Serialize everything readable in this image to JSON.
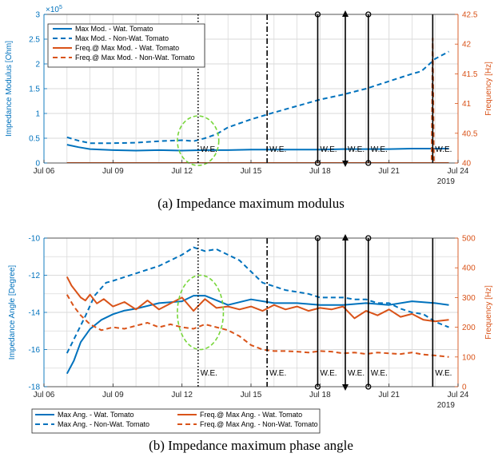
{
  "colors": {
    "blue": "#0072BD",
    "orange": "#D95319",
    "green": "#77D63A",
    "grid": "#DADADA",
    "event": "#000000"
  },
  "chart_data": [
    {
      "type": "line",
      "caption": "(a) Impedance maximum modulus",
      "ylabel_left": "Impedance Modulus [Ohm]",
      "ylabel_right": "Frequency [Hz]",
      "y_exponent_label": "×10^5",
      "x_ticks": [
        "Jul 06",
        "Jul 09",
        "Jul 12",
        "Jul 15",
        "Jul 18",
        "Jul 21",
        "Jul 24"
      ],
      "x_tick_values": [
        6,
        9,
        12,
        15,
        18,
        21,
        24
      ],
      "x_year_label": "2019",
      "xlim": [
        6,
        24
      ],
      "ylim_left": [
        0,
        3
      ],
      "ylim_right": [
        40,
        42.5
      ],
      "y_ticks_left": [
        "0",
        "0.5",
        "1",
        "1.5",
        "2",
        "2.5",
        "3"
      ],
      "y_tick_values_left": [
        0,
        0.5,
        1,
        1.5,
        2,
        2.5,
        3
      ],
      "y_ticks_right": [
        "40",
        "40.5",
        "41",
        "41.5",
        "42",
        "42.5"
      ],
      "y_tick_values_right": [
        40,
        40.5,
        41,
        41.5,
        42,
        42.5
      ],
      "grid": true,
      "legend_position": "top-left",
      "series": [
        {
          "name": "Max Mod. - Wat. Tomato",
          "axis": "left",
          "style": "solid",
          "color": "blue",
          "x": [
            7,
            7.5,
            8,
            8.5,
            9,
            10,
            11,
            12,
            13,
            14,
            15,
            16,
            17,
            18,
            19,
            20,
            21,
            22,
            23,
            23.6
          ],
          "y": [
            0.37,
            0.32,
            0.28,
            0.27,
            0.26,
            0.25,
            0.26,
            0.25,
            0.26,
            0.26,
            0.27,
            0.27,
            0.27,
            0.27,
            0.28,
            0.28,
            0.28,
            0.29,
            0.29,
            0.29
          ]
        },
        {
          "name": "Max Mod. - Non-Wat. Tomato",
          "axis": "left",
          "style": "dashed",
          "color": "blue",
          "x": [
            7,
            7.5,
            8,
            8.5,
            9,
            10,
            11,
            12,
            12.5,
            13,
            13.5,
            14,
            15,
            16,
            17,
            18,
            19,
            20,
            21,
            22,
            22.4,
            23,
            23.6
          ],
          "y": [
            0.52,
            0.45,
            0.4,
            0.4,
            0.4,
            0.41,
            0.44,
            0.46,
            0.44,
            0.5,
            0.58,
            0.72,
            0.88,
            1.02,
            1.15,
            1.28,
            1.38,
            1.5,
            1.65,
            1.8,
            1.85,
            2.1,
            2.25
          ]
        },
        {
          "name": "Freq.@ Max Mod. - Wat. Tomato",
          "axis": "right",
          "style": "solid",
          "color": "orange",
          "x": [
            7,
            23.6
          ],
          "y": [
            40,
            40
          ]
        },
        {
          "name": "Freq.@ Max Mod. - Non-Wat. Tomato",
          "axis": "right",
          "style": "dashed",
          "color": "orange",
          "x": [
            7,
            22.85,
            22.9,
            22.95,
            23.6
          ],
          "y": [
            40,
            40,
            42.1,
            40,
            40
          ]
        }
      ],
      "event_lines": [
        {
          "x": 12.7,
          "style": "dotted",
          "marker": "none",
          "label": "W.E."
        },
        {
          "x": 15.7,
          "style": "dashdot",
          "marker": "none",
          "label": "W.E."
        },
        {
          "x": 17.9,
          "style": "solid",
          "marker": "circle",
          "label": "W.E."
        },
        {
          "x": 19.1,
          "style": "solid",
          "marker": "triangle",
          "label": "W.E."
        },
        {
          "x": 20.1,
          "style": "solid",
          "marker": "circle",
          "label": "W.E."
        },
        {
          "x": 22.9,
          "style": "solid",
          "marker": "none",
          "label": "W.E."
        }
      ],
      "highlight": {
        "x": 12.7,
        "y": 0.45,
        "rx": 0.9,
        "ry": 0.5
      }
    },
    {
      "type": "line",
      "caption": "(b) Impedance maximum phase angle",
      "ylabel_left": "Impedance Angle [Degree]",
      "ylabel_right": "Frequency [Hz]",
      "x_ticks": [
        "Jul 06",
        "Jul 09",
        "Jul 12",
        "Jul 15",
        "Jul 18",
        "Jul 21",
        "Jul 24"
      ],
      "x_tick_values": [
        6,
        9,
        12,
        15,
        18,
        21,
        24
      ],
      "x_year_label": "2019",
      "xlim": [
        6,
        24
      ],
      "ylim_left": [
        -18,
        -10
      ],
      "ylim_right": [
        0,
        500
      ],
      "y_ticks_left": [
        "-18",
        "-16",
        "-14",
        "-12",
        "-10"
      ],
      "y_tick_values_left": [
        -18,
        -16,
        -14,
        -12,
        -10
      ],
      "y_ticks_right": [
        "0",
        "100",
        "200",
        "300",
        "400",
        "500"
      ],
      "y_tick_values_right": [
        0,
        100,
        200,
        300,
        400,
        500
      ],
      "grid": true,
      "legend_position": "bottom-outside",
      "series": [
        {
          "name": "Max Ang. - Wat. Tomato",
          "axis": "left",
          "style": "solid",
          "color": "blue",
          "x": [
            7,
            7.3,
            7.6,
            8,
            8.5,
            9,
            9.5,
            10,
            11,
            12,
            12.5,
            13,
            14,
            15,
            16,
            17,
            18,
            19,
            20,
            21,
            22,
            23,
            23.6
          ],
          "y": [
            -17.3,
            -16.6,
            -15.6,
            -14.9,
            -14.4,
            -14.1,
            -13.9,
            -13.8,
            -13.5,
            -13.4,
            -13.1,
            -13.1,
            -13.6,
            -13.3,
            -13.5,
            -13.5,
            -13.6,
            -13.6,
            -13.5,
            -13.6,
            -13.4,
            -13.5,
            -13.6
          ]
        },
        {
          "name": "Max Ang. - Non-Wat. Tomato",
          "axis": "left",
          "style": "dashed",
          "color": "blue",
          "x": [
            7,
            7.4,
            7.8,
            8.2,
            8.7,
            9,
            9.5,
            10,
            10.5,
            11,
            11.5,
            12,
            12.5,
            13,
            13.5,
            14,
            14.5,
            15,
            15.5,
            16,
            16.5,
            17,
            17.5,
            18,
            18.5,
            19,
            19.5,
            20,
            20.5,
            21,
            21.5,
            22,
            22.5,
            23,
            23.6
          ],
          "y": [
            -16.2,
            -15.2,
            -14.2,
            -13.1,
            -12.4,
            -12.3,
            -12.1,
            -11.9,
            -11.7,
            -11.5,
            -11.2,
            -10.9,
            -10.5,
            -10.7,
            -10.6,
            -10.9,
            -11.2,
            -11.8,
            -12.4,
            -12.6,
            -12.8,
            -12.9,
            -13.0,
            -13.2,
            -13.2,
            -13.2,
            -13.3,
            -13.3,
            -13.5,
            -13.5,
            -13.8,
            -14.0,
            -14.1,
            -14.5,
            -14.8
          ]
        },
        {
          "name": "Freq.@ Max Ang. - Wat. Tomato",
          "axis": "right",
          "style": "solid",
          "color": "orange",
          "x": [
            7,
            7.2,
            7.4,
            7.6,
            7.8,
            8,
            8.3,
            8.6,
            9,
            9.5,
            10,
            10.5,
            11,
            11.5,
            12,
            12.5,
            13,
            13.5,
            14,
            14.5,
            15,
            15.5,
            16,
            16.5,
            17,
            17.5,
            18,
            18.5,
            19,
            19.5,
            20,
            20.5,
            21,
            21.5,
            22,
            22.5,
            23,
            23.6
          ],
          "y": [
            370,
            340,
            320,
            300,
            290,
            310,
            280,
            295,
            270,
            285,
            260,
            290,
            260,
            280,
            300,
            255,
            295,
            265,
            270,
            260,
            270,
            255,
            275,
            260,
            270,
            255,
            265,
            260,
            270,
            230,
            255,
            240,
            260,
            235,
            245,
            225,
            220,
            225
          ]
        },
        {
          "name": "Freq.@ Max Ang. - Non-Wat. Tomato",
          "axis": "right",
          "style": "dashed",
          "color": "orange",
          "x": [
            7,
            7.3,
            7.6,
            8,
            8.5,
            9,
            9.5,
            10,
            10.5,
            11,
            11.5,
            12,
            12.5,
            13,
            13.5,
            14,
            14.5,
            15,
            15.5,
            16,
            16.5,
            17,
            17.5,
            18,
            18.5,
            19,
            19.5,
            20,
            20.5,
            21,
            21.5,
            22,
            22.5,
            23,
            23.6
          ],
          "y": [
            310,
            270,
            240,
            210,
            190,
            200,
            195,
            205,
            215,
            200,
            210,
            200,
            195,
            210,
            200,
            190,
            170,
            140,
            125,
            120,
            120,
            118,
            115,
            120,
            118,
            112,
            115,
            110,
            115,
            112,
            110,
            115,
            108,
            105,
            100
          ]
        }
      ],
      "event_lines": [
        {
          "x": 12.7,
          "style": "dotted",
          "marker": "none",
          "label": "W.E."
        },
        {
          "x": 15.7,
          "style": "dashdot",
          "marker": "none",
          "label": "W.E."
        },
        {
          "x": 17.9,
          "style": "solid",
          "marker": "circle",
          "label": "W.E."
        },
        {
          "x": 19.1,
          "style": "solid",
          "marker": "triangle",
          "label": "W.E."
        },
        {
          "x": 20.1,
          "style": "solid",
          "marker": "circle",
          "label": "W.E."
        },
        {
          "x": 22.9,
          "style": "solid",
          "marker": "none",
          "label": "W.E."
        }
      ],
      "highlight": {
        "x": 12.8,
        "y": -14.0,
        "rx": 1.0,
        "ry": 2.0
      }
    }
  ]
}
